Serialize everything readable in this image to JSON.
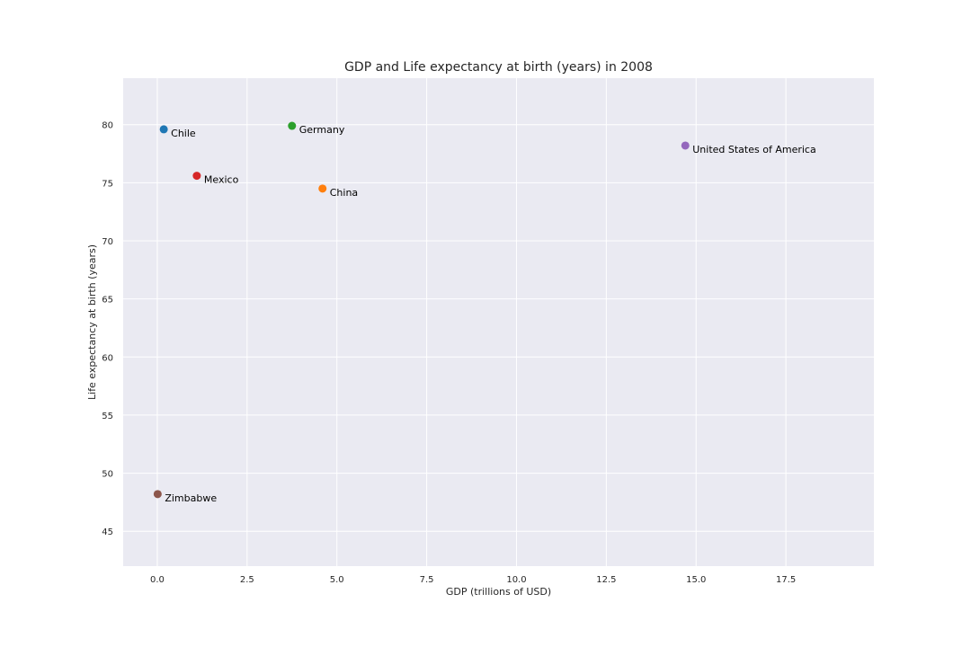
{
  "chart_data": {
    "type": "scatter",
    "title": "GDP and Life expectancy at birth (years) in 2008",
    "xlabel": "GDP (trillions of USD)",
    "ylabel": "Life expectancy at birth (years)",
    "xlim": [
      -0.95,
      19.95
    ],
    "ylim": [
      42.0,
      84.0
    ],
    "x_ticks": [
      0.0,
      2.5,
      5.0,
      7.5,
      10.0,
      12.5,
      15.0,
      17.5
    ],
    "x_tick_labels": [
      "0.0",
      "2.5",
      "5.0",
      "7.5",
      "10.0",
      "12.5",
      "15.0",
      "17.5"
    ],
    "y_ticks": [
      45,
      50,
      55,
      60,
      65,
      70,
      75,
      80
    ],
    "y_tick_labels": [
      "45",
      "50",
      "55",
      "60",
      "65",
      "70",
      "75",
      "80"
    ],
    "grid": true,
    "background": "#eaeaf2",
    "points": [
      {
        "label": "Chile",
        "x": 0.18,
        "y": 79.6,
        "color": "#1f77b4"
      },
      {
        "label": "China",
        "x": 4.6,
        "y": 74.5,
        "color": "#ff7f0e"
      },
      {
        "label": "Germany",
        "x": 3.75,
        "y": 79.9,
        "color": "#2ca02c"
      },
      {
        "label": "Mexico",
        "x": 1.1,
        "y": 75.6,
        "color": "#d62728"
      },
      {
        "label": "United States of America",
        "x": 14.7,
        "y": 78.2,
        "color": "#9467bd"
      },
      {
        "label": "Zimbabwe",
        "x": 0.01,
        "y": 48.2,
        "color": "#8c564b"
      }
    ]
  }
}
